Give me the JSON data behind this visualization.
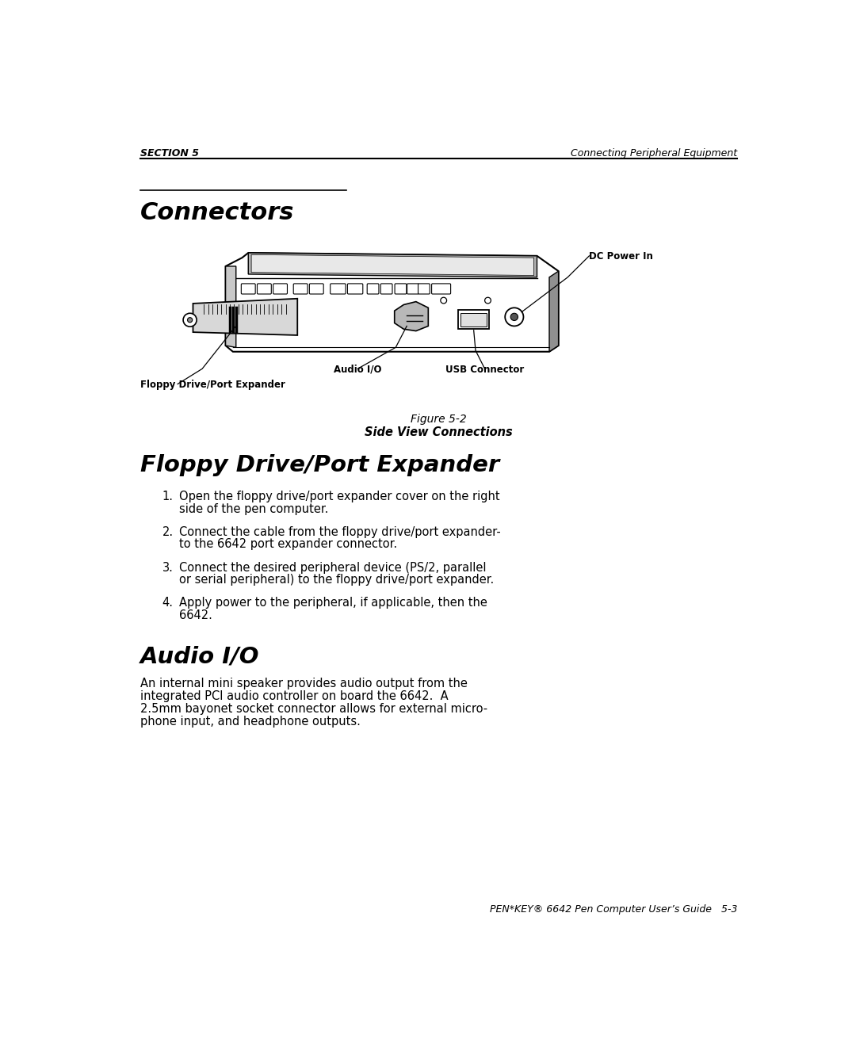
{
  "bg_color": "#ffffff",
  "header_left": "SECTION 5",
  "header_right": "Connecting Peripheral Equipment",
  "section_title": "Connectors",
  "figure_caption_italic": "Figure 5-2",
  "figure_caption_bold": "Side View Connections",
  "subsection1_title": "Floppy Drive/Port Expander",
  "subsection1_items": [
    "Open the floppy drive/port expander cover on the right\nside of the pen computer.",
    "Connect the cable from the floppy drive/port expander-\nto the 6642 port expander connector.",
    "Connect the desired peripheral device (PS/2, parallel\nor serial peripheral) to the floppy drive/port expander.",
    "Apply power to the peripheral, if applicable, then the\n6642."
  ],
  "subsection2_title": "Audio I/O",
  "subsection2_body_lines": [
    "An internal mini speaker provides audio output from the",
    "integrated PCI audio controller on board the 6642.  A",
    "2.5mm bayonet socket connector allows for external micro-",
    "phone input, and headphone outputs."
  ],
  "footer_text": "PEN*KEY® 6642 Pen Computer User’s Guide   5-3",
  "label_dc_power": "DC Power In",
  "label_audio": "Audio I/O",
  "label_usb": "USB Connector",
  "label_floppy": "Floppy Drive/Port Expander"
}
